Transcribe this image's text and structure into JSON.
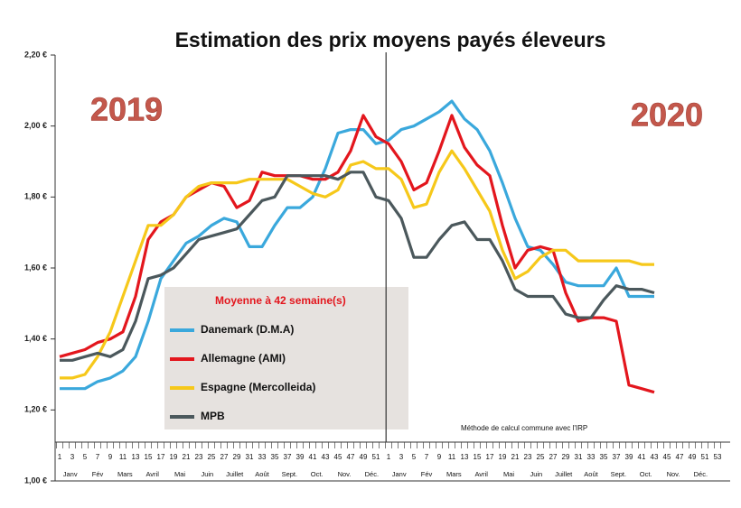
{
  "chart_data": {
    "type": "line",
    "title": "Estimation des prix moyens payés éleveurs",
    "annotations": [
      "2019",
      "2020"
    ],
    "note": "Méthode de calcul commune avec l'IRP",
    "legend_title": "Moyenne à  42 semaine(s)",
    "categories": [
      "1",
      "3",
      "5",
      "7",
      "9",
      "11",
      "13",
      "15",
      "17",
      "19",
      "21",
      "23",
      "25",
      "27",
      "29",
      "31",
      "33",
      "35",
      "37",
      "39",
      "41",
      "43",
      "45",
      "47",
      "49",
      "51",
      "1",
      "3",
      "5",
      "7",
      "9",
      "11",
      "13",
      "15",
      "17",
      "19",
      "21",
      "23",
      "25",
      "27",
      "29",
      "31",
      "33",
      "35",
      "37",
      "39",
      "41",
      "43",
      "45",
      "47",
      "49",
      "51",
      "53"
    ],
    "months": [
      "Janv",
      "Fév",
      "Mars",
      "Avril",
      "Mai",
      "Juin",
      "Juillet",
      "Août",
      "Sept.",
      "Oct.",
      "Nov.",
      "Déc.",
      "Janv",
      "Fév",
      "Mars",
      "Avril",
      "Mai",
      "Juin",
      "Juillet",
      "Août",
      "Sept.",
      "Oct.",
      "Nov.",
      "Déc."
    ],
    "series": [
      {
        "name": "Danemark (D.M.A)",
        "color": "#3aa8dc",
        "values": [
          1.26,
          1.26,
          1.26,
          1.28,
          1.29,
          1.31,
          1.35,
          1.45,
          1.57,
          1.62,
          1.67,
          1.69,
          1.72,
          1.74,
          1.73,
          1.66,
          1.66,
          1.72,
          1.77,
          1.77,
          1.8,
          1.88,
          1.98,
          1.99,
          1.99,
          1.95,
          1.96,
          1.99,
          2.0,
          2.02,
          2.04,
          2.07,
          2.02,
          1.99,
          1.93,
          1.84,
          1.74,
          1.66,
          1.65,
          1.61,
          1.56,
          1.55,
          1.55,
          1.55,
          1.6,
          1.52,
          1.52,
          1.52,
          null,
          null,
          null,
          null,
          null
        ]
      },
      {
        "name": "Allemagne (AMI)",
        "color": "#e3161d",
        "values": [
          1.35,
          1.36,
          1.37,
          1.39,
          1.4,
          1.42,
          1.52,
          1.68,
          1.73,
          1.75,
          1.8,
          1.82,
          1.84,
          1.83,
          1.77,
          1.79,
          1.87,
          1.86,
          1.86,
          1.86,
          1.85,
          1.85,
          1.87,
          1.93,
          2.03,
          1.97,
          1.95,
          1.9,
          1.82,
          1.84,
          1.93,
          2.03,
          1.94,
          1.89,
          1.86,
          1.72,
          1.6,
          1.65,
          1.66,
          1.65,
          1.53,
          1.45,
          1.46,
          1.46,
          1.45,
          1.27,
          1.26,
          1.25,
          null,
          null,
          null,
          null,
          null
        ]
      },
      {
        "name": "Espagne (Mercolleida)",
        "color": "#f6c81a",
        "values": [
          1.29,
          1.29,
          1.3,
          1.35,
          1.42,
          1.52,
          1.62,
          1.72,
          1.72,
          1.75,
          1.8,
          1.83,
          1.84,
          1.84,
          1.84,
          1.85,
          1.85,
          1.85,
          1.85,
          1.83,
          1.81,
          1.8,
          1.82,
          1.89,
          1.9,
          1.88,
          1.88,
          1.85,
          1.77,
          1.78,
          1.87,
          1.93,
          1.88,
          1.82,
          1.76,
          1.65,
          1.57,
          1.59,
          1.63,
          1.65,
          1.65,
          1.62,
          1.62,
          1.62,
          1.62,
          1.62,
          1.61,
          1.61,
          null,
          null,
          null,
          null,
          null
        ]
      },
      {
        "name": "MPB",
        "color": "#4b585c",
        "values": [
          1.34,
          1.34,
          1.35,
          1.36,
          1.35,
          1.37,
          1.45,
          1.57,
          1.58,
          1.6,
          1.64,
          1.68,
          1.69,
          1.7,
          1.71,
          1.75,
          1.79,
          1.8,
          1.86,
          1.86,
          1.86,
          1.86,
          1.85,
          1.87,
          1.87,
          1.8,
          1.79,
          1.74,
          1.63,
          1.63,
          1.68,
          1.72,
          1.73,
          1.68,
          1.68,
          1.62,
          1.54,
          1.52,
          1.52,
          1.52,
          1.47,
          1.46,
          1.46,
          1.51,
          1.55,
          1.54,
          1.54,
          1.53,
          null,
          null,
          null,
          null,
          null
        ]
      }
    ],
    "ylim": [
      1.0,
      2.2
    ],
    "yticks": [
      {
        "value": 1.0,
        "label": "1,00 €"
      },
      {
        "value": 1.2,
        "label": "1,20 €"
      },
      {
        "value": 1.4,
        "label": "1,40 €"
      },
      {
        "value": 1.6,
        "label": "1,60 €"
      },
      {
        "value": 1.8,
        "label": "1,80 €"
      },
      {
        "value": 2.0,
        "label": "2,00 €"
      },
      {
        "value": 2.2,
        "label": "2,20 €"
      }
    ]
  }
}
